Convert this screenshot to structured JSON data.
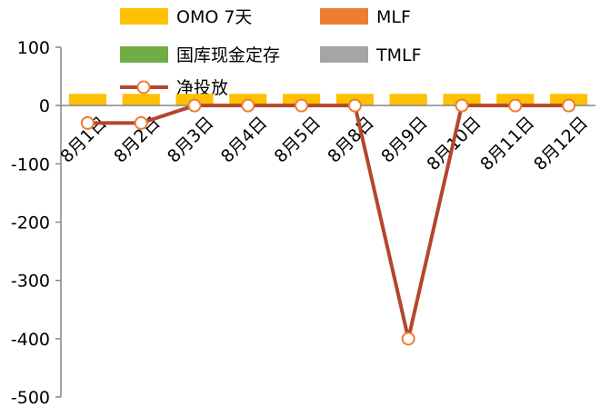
{
  "chart_data": {
    "type": "bar",
    "categories": [
      "8月1日",
      "8月2日",
      "8月3日",
      "8月4日",
      "8月5日",
      "8月8日",
      "8月9日",
      "8月10日",
      "8月11日",
      "8月12日"
    ],
    "series": [
      {
        "name": "OMO 7天",
        "kind": "bar",
        "color": "#FFC000",
        "values": [
          20,
          20,
          20,
          20,
          20,
          20,
          20,
          20,
          20,
          20
        ]
      },
      {
        "name": "MLF",
        "kind": "bar",
        "color": "#ED7D31",
        "values": [
          0,
          0,
          0,
          0,
          0,
          0,
          0,
          0,
          0,
          0
        ]
      },
      {
        "name": "国库现金定存",
        "kind": "bar",
        "color": "#70AD47",
        "values": [
          0,
          0,
          0,
          0,
          0,
          0,
          0,
          0,
          0,
          0
        ]
      },
      {
        "name": "TMLF",
        "kind": "bar",
        "color": "#A5A5A5",
        "values": [
          0,
          0,
          0,
          0,
          0,
          0,
          0,
          0,
          0,
          0
        ]
      },
      {
        "name": "净投放",
        "kind": "line",
        "color": "#B5462C",
        "marker_fill": "#FFFFFF",
        "marker_stroke": "#ED7D31",
        "values": [
          -30,
          -30,
          0,
          0,
          0,
          0,
          -400,
          0,
          0,
          0
        ]
      }
    ],
    "yticks": [
      100,
      0,
      -100,
      -200,
      -300,
      -400,
      -500
    ],
    "ylim": [
      -500,
      100
    ],
    "grid": false,
    "legend_position": "top",
    "title": "",
    "xlabel": "",
    "ylabel": ""
  }
}
